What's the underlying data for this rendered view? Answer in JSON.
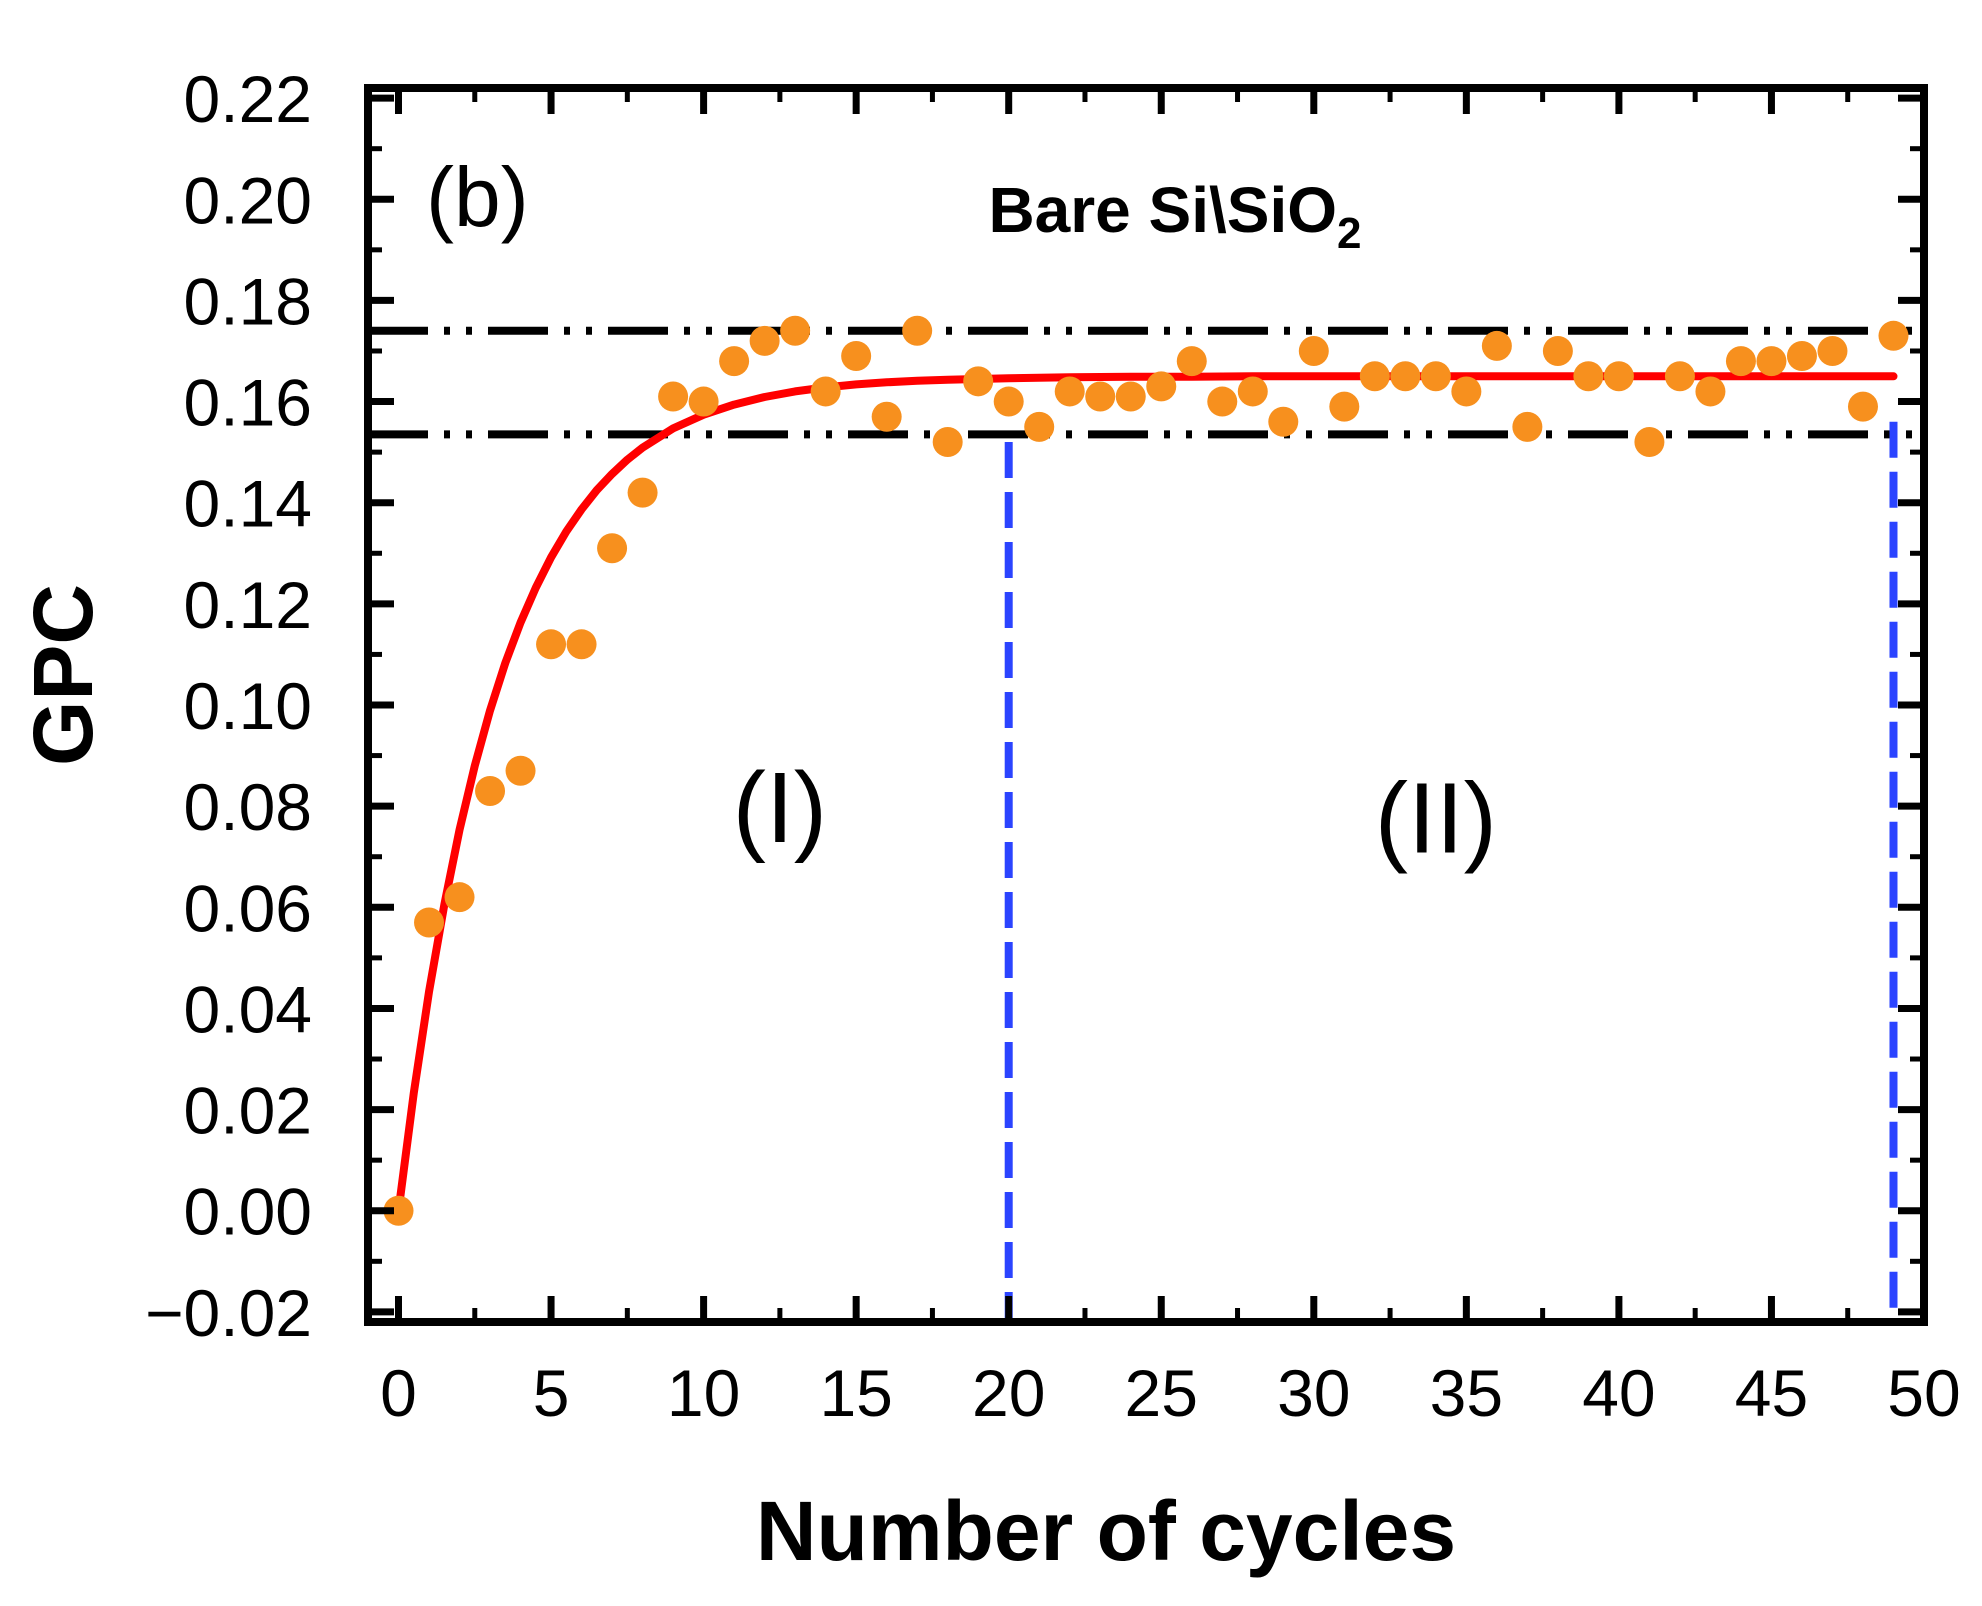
{
  "chart_data": {
    "type": "scatter",
    "panel_label": "(b)",
    "title": "Bare Si\\SiO",
    "title_subscript": "2",
    "xlabel": "Number of cycles",
    "ylabel": "GPC",
    "xlim": [
      -1,
      50
    ],
    "ylim": [
      -0.022,
      0.222
    ],
    "xticks": [
      0,
      5,
      10,
      15,
      20,
      25,
      30,
      35,
      40,
      45,
      50
    ],
    "xtick_labels": [
      "0",
      "5",
      "10",
      "15",
      "20",
      "25",
      "30",
      "35",
      "40",
      "45",
      "50"
    ],
    "yticks": [
      -0.02,
      0.0,
      0.02,
      0.04,
      0.06,
      0.08,
      0.1,
      0.12,
      0.14,
      0.16,
      0.18,
      0.2,
      0.22
    ],
    "ytick_labels": [
      "−0.02",
      "0.00",
      "0.02",
      "0.04",
      "0.06",
      "0.08",
      "0.10",
      "0.12",
      "0.14",
      "0.16",
      "0.18",
      "0.20",
      "0.22"
    ],
    "series": [
      {
        "name": "GPC data",
        "kind": "points",
        "color": "#f7901e",
        "x": [
          0,
          1,
          2,
          3,
          4,
          5,
          6,
          7,
          8,
          9,
          10,
          11,
          12,
          13,
          14,
          15,
          16,
          17,
          18,
          19,
          20,
          21,
          22,
          23,
          24,
          25,
          26,
          27,
          28,
          29,
          30,
          31,
          32,
          33,
          34,
          35,
          36,
          37,
          38,
          39,
          40,
          41,
          42,
          43,
          44,
          45,
          46,
          47,
          48,
          49
        ],
        "y": [
          0.0,
          0.057,
          0.062,
          0.083,
          0.087,
          0.112,
          0.112,
          0.131,
          0.142,
          0.161,
          0.16,
          0.168,
          0.172,
          0.174,
          0.162,
          0.169,
          0.157,
          0.174,
          0.152,
          0.164,
          0.16,
          0.155,
          0.162,
          0.161,
          0.161,
          0.163,
          0.168,
          0.16,
          0.162,
          0.156,
          0.17,
          0.159,
          0.165,
          0.165,
          0.165,
          0.162,
          0.171,
          0.155,
          0.17,
          0.165,
          0.165,
          0.152,
          0.165,
          0.162,
          0.168,
          0.168,
          0.169,
          0.17,
          0.159,
          0.173
        ]
      },
      {
        "name": "Exponential fit",
        "kind": "curve",
        "color": "#ff0000",
        "x": [
          0,
          0.5,
          1,
          1.5,
          2,
          2.5,
          3,
          3.5,
          4,
          4.5,
          5,
          5.5,
          6,
          6.5,
          7,
          7.5,
          8,
          9,
          10,
          11,
          12,
          13,
          14,
          15,
          16,
          17,
          18,
          20,
          22,
          24,
          26,
          28,
          30,
          35,
          40,
          45,
          49
        ],
        "y": [
          0.0,
          0.0233,
          0.0433,
          0.0605,
          0.0753,
          0.088,
          0.0989,
          0.1083,
          0.1163,
          0.1232,
          0.1292,
          0.1343,
          0.1387,
          0.1425,
          0.1457,
          0.1485,
          0.1509,
          0.1547,
          0.1574,
          0.1594,
          0.1609,
          0.162,
          0.1628,
          0.1634,
          0.1638,
          0.1641,
          0.1643,
          0.1646,
          0.1648,
          0.1649,
          0.1649,
          0.165,
          0.165,
          0.165,
          0.165,
          0.165,
          0.165
        ]
      }
    ],
    "reference_lines": [
      {
        "name": "upper bound",
        "orientation": "horizontal",
        "y": 0.174,
        "color": "#000000",
        "style": "dash-dot-dot"
      },
      {
        "name": "lower bound",
        "orientation": "horizontal",
        "y": 0.1535,
        "color": "#000000",
        "style": "dash-dot-dot"
      },
      {
        "name": "region boundary",
        "orientation": "vertical",
        "x": 20,
        "y_from": -0.022,
        "y_to": 0.152,
        "color": "#2b44ff",
        "style": "dashed"
      },
      {
        "name": "end boundary",
        "orientation": "vertical",
        "x": 49,
        "y_from": -0.022,
        "y_to": 0.156,
        "color": "#2b44ff",
        "style": "dashed"
      }
    ],
    "regions": [
      {
        "label": "(I)",
        "x": 12.5,
        "y": 0.08
      },
      {
        "label": "(II)",
        "x": 34,
        "y": 0.078
      }
    ]
  }
}
